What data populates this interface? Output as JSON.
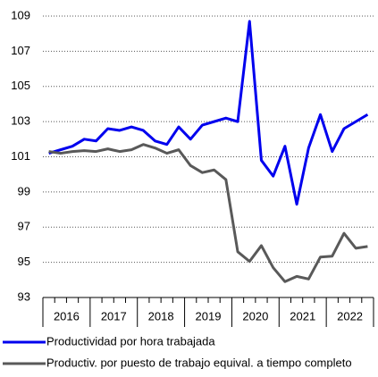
{
  "chart_data": {
    "type": "line",
    "year_labels": [
      "2016",
      "2017",
      "2018",
      "2019",
      "2020",
      "2021",
      "2022"
    ],
    "series": [
      {
        "name": "Productividad por hora trabajada",
        "color": "#0000ee",
        "values": [
          101.2,
          101.4,
          101.6,
          102.0,
          101.9,
          102.6,
          102.5,
          102.7,
          102.5,
          101.9,
          101.7,
          102.7,
          102.0,
          102.8,
          103.0,
          103.2,
          103.0,
          108.7,
          100.8,
          99.9,
          101.6,
          98.3,
          101.5,
          103.4,
          101.3,
          102.6,
          103.0,
          103.4
        ]
      },
      {
        "name": "Productiv. por puesto de trabajo equival. a tiempo completo",
        "color": "#595959",
        "values": [
          101.3,
          101.2,
          101.3,
          101.35,
          101.3,
          101.45,
          101.3,
          101.4,
          101.7,
          101.5,
          101.2,
          101.4,
          100.5,
          100.1,
          100.25,
          99.7,
          95.6,
          95.05,
          95.95,
          94.7,
          93.9,
          94.2,
          94.05,
          95.3,
          95.35,
          96.65,
          95.8,
          95.9
        ]
      }
    ],
    "ylim": [
      93,
      109
    ],
    "yticks": [
      93,
      95,
      97,
      99,
      101,
      103,
      105,
      107,
      109
    ],
    "grid": true
  }
}
